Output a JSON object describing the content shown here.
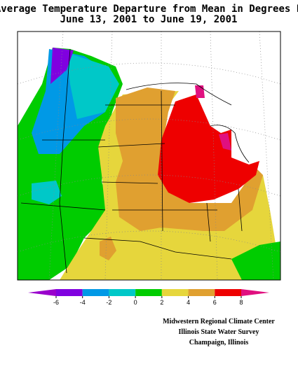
{
  "title": {
    "line1": "Average Temperature Departure from Mean in Degrees F",
    "line2": "June 13, 2001 to June 19, 2001"
  },
  "colorbar": {
    "ticks": [
      -6,
      -4,
      -2,
      0,
      2,
      4,
      6,
      8
    ],
    "colors": [
      "#9900cc",
      "#8000e0",
      "#0099e6",
      "#00c8c8",
      "#00cc00",
      "#e6d63c",
      "#e0a030",
      "#ee0000",
      "#e0107f"
    ]
  },
  "credits": [
    "Midwestern Regional Climate Center",
    "Illinois State Water Survey",
    "Champaign, Illinois"
  ]
}
